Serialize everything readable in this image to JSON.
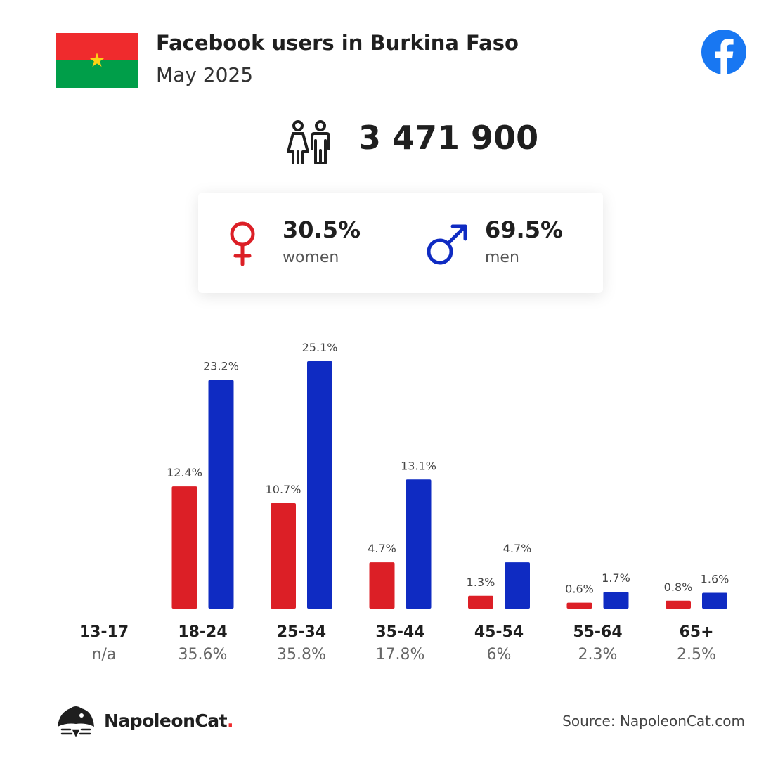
{
  "header": {
    "title": "Facebook users in Burkina Faso",
    "subtitle": "May 2025"
  },
  "colors": {
    "women": "#dc1f26",
    "men": "#0f2bc2",
    "facebook": "#1877f2",
    "flag_red": "#ef2b2d",
    "flag_green": "#009e49",
    "flag_star": "#fcd116"
  },
  "total_users": "3 471 900",
  "gender": {
    "women": {
      "pct": "30.5%",
      "label": "women"
    },
    "men": {
      "pct": "69.5%",
      "label": "men"
    }
  },
  "chart_data": {
    "type": "bar",
    "categories": [
      "13-17",
      "18-24",
      "25-34",
      "35-44",
      "45-54",
      "55-64",
      "65+"
    ],
    "category_totals": [
      "n/a",
      "35.6%",
      "35.8%",
      "17.8%",
      "6%",
      "2.3%",
      "2.5%"
    ],
    "series": [
      {
        "name": "women",
        "values": [
          null,
          12.4,
          10.7,
          4.7,
          1.3,
          0.6,
          0.8
        ],
        "labels": [
          "",
          "12.4%",
          "10.7%",
          "4.7%",
          "1.3%",
          "0.6%",
          "0.8%"
        ]
      },
      {
        "name": "men",
        "values": [
          null,
          23.2,
          25.1,
          13.1,
          4.7,
          1.7,
          1.6
        ],
        "labels": [
          "",
          "23.2%",
          "25.1%",
          "13.1%",
          "4.7%",
          "1.7%",
          "1.6%"
        ]
      }
    ],
    "ylim": [
      0,
      25.1
    ],
    "grid": false
  },
  "footer": {
    "brand": "NapoleonCat",
    "brand_dot": ".",
    "source": "Source: NapoleonCat.com"
  },
  "icons": {
    "flag": "burkina-faso-flag-icon",
    "facebook": "facebook-logo-icon",
    "people": "people-icon",
    "female": "female-symbol-icon",
    "male": "male-symbol-icon",
    "brand": "napoleoncat-logo-icon"
  }
}
